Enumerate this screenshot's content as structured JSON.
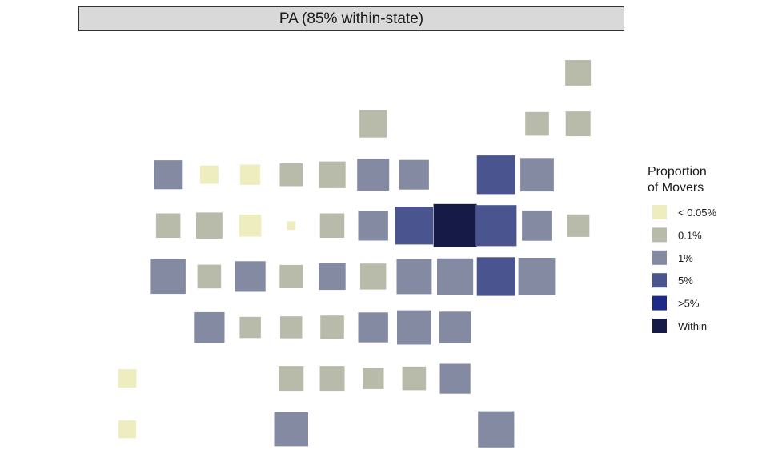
{
  "chart_data": {
    "type": "tile-grid",
    "title": "PA (85% within-state)",
    "legend": {
      "title_lines": [
        "Proportion",
        "of Movers"
      ],
      "position": "right",
      "entries": [
        {
          "key": "lt005",
          "label": "< 0.05%",
          "color": "#ededbf"
        },
        {
          "key": "p01",
          "label": "0.1%",
          "color": "#b8bba9"
        },
        {
          "key": "p1",
          "label": "1%",
          "color": "#858aa3"
        },
        {
          "key": "p5",
          "label": "5%",
          "color": "#4a5590"
        },
        {
          "key": "gt5",
          "label": ">5%",
          "color": "#1e2a8a"
        },
        {
          "key": "within",
          "label": "Within",
          "color": "#161a46"
        }
      ]
    },
    "size_scale": {
      "min": 0.02,
      "max": 1.0
    },
    "tiles": [
      {
        "row": 0,
        "col": 11,
        "category": "p01",
        "value": 0.35
      },
      {
        "row": 1,
        "col": 6,
        "category": "p01",
        "value": 0.4
      },
      {
        "row": 1,
        "col": 10,
        "category": "p01",
        "value": 0.3
      },
      {
        "row": 1,
        "col": 11,
        "category": "p01",
        "value": 0.33
      },
      {
        "row": 2,
        "col": 1,
        "category": "p1",
        "value": 0.45
      },
      {
        "row": 2,
        "col": 2,
        "category": "lt005",
        "value": 0.18
      },
      {
        "row": 2,
        "col": 3,
        "category": "lt005",
        "value": 0.22
      },
      {
        "row": 2,
        "col": 4,
        "category": "p01",
        "value": 0.28
      },
      {
        "row": 2,
        "col": 5,
        "category": "p01",
        "value": 0.38
      },
      {
        "row": 2,
        "col": 6,
        "category": "p1",
        "value": 0.55
      },
      {
        "row": 2,
        "col": 7,
        "category": "p1",
        "value": 0.47
      },
      {
        "row": 2,
        "col": 9,
        "category": "p5",
        "value": 0.8
      },
      {
        "row": 2,
        "col": 10,
        "category": "p1",
        "value": 0.6
      },
      {
        "row": 3,
        "col": 1,
        "category": "p01",
        "value": 0.32
      },
      {
        "row": 3,
        "col": 2,
        "category": "p01",
        "value": 0.37
      },
      {
        "row": 3,
        "col": 3,
        "category": "lt005",
        "value": 0.26
      },
      {
        "row": 3,
        "col": 4,
        "category": "lt005",
        "value": 0.04
      },
      {
        "row": 3,
        "col": 5,
        "category": "p01",
        "value": 0.32
      },
      {
        "row": 3,
        "col": 6,
        "category": "p1",
        "value": 0.48
      },
      {
        "row": 3,
        "col": 7,
        "category": "p5",
        "value": 0.76
      },
      {
        "row": 3,
        "col": 8,
        "category": "within",
        "value": 1.0
      },
      {
        "row": 3,
        "col": 9,
        "category": "p5",
        "value": 0.9
      },
      {
        "row": 3,
        "col": 10,
        "category": "p1",
        "value": 0.49
      },
      {
        "row": 3,
        "col": 11,
        "category": "p01",
        "value": 0.27
      },
      {
        "row": 4,
        "col": 1,
        "category": "p1",
        "value": 0.65
      },
      {
        "row": 4,
        "col": 2,
        "category": "p01",
        "value": 0.3
      },
      {
        "row": 4,
        "col": 3,
        "category": "p1",
        "value": 0.5
      },
      {
        "row": 4,
        "col": 4,
        "category": "p01",
        "value": 0.29
      },
      {
        "row": 4,
        "col": 5,
        "category": "p1",
        "value": 0.38
      },
      {
        "row": 4,
        "col": 6,
        "category": "p01",
        "value": 0.36
      },
      {
        "row": 4,
        "col": 7,
        "category": "p1",
        "value": 0.66
      },
      {
        "row": 4,
        "col": 8,
        "category": "p1",
        "value": 0.7
      },
      {
        "row": 4,
        "col": 9,
        "category": "p5",
        "value": 0.8
      },
      {
        "row": 4,
        "col": 10,
        "category": "p1",
        "value": 0.75
      },
      {
        "row": 5,
        "col": 2,
        "category": "p1",
        "value": 0.5
      },
      {
        "row": 5,
        "col": 3,
        "category": "p01",
        "value": 0.24
      },
      {
        "row": 5,
        "col": 4,
        "category": "p01",
        "value": 0.26
      },
      {
        "row": 5,
        "col": 5,
        "category": "p01",
        "value": 0.3
      },
      {
        "row": 5,
        "col": 6,
        "category": "p1",
        "value": 0.48
      },
      {
        "row": 5,
        "col": 7,
        "category": "p1",
        "value": 0.63
      },
      {
        "row": 5,
        "col": 8,
        "category": "p1",
        "value": 0.53
      },
      {
        "row": 6,
        "col": 0,
        "category": "lt005",
        "value": 0.18
      },
      {
        "row": 6,
        "col": 4,
        "category": "p01",
        "value": 0.33
      },
      {
        "row": 6,
        "col": 5,
        "category": "p01",
        "value": 0.33
      },
      {
        "row": 6,
        "col": 6,
        "category": "p01",
        "value": 0.24
      },
      {
        "row": 6,
        "col": 7,
        "category": "p01",
        "value": 0.3
      },
      {
        "row": 6,
        "col": 8,
        "category": "p1",
        "value": 0.5
      },
      {
        "row": 7,
        "col": 0,
        "category": "lt005",
        "value": 0.17
      },
      {
        "row": 7,
        "col": 4,
        "category": "p1",
        "value": 0.62
      },
      {
        "row": 7,
        "col": 9,
        "category": "p1",
        "value": 0.7
      }
    ]
  }
}
